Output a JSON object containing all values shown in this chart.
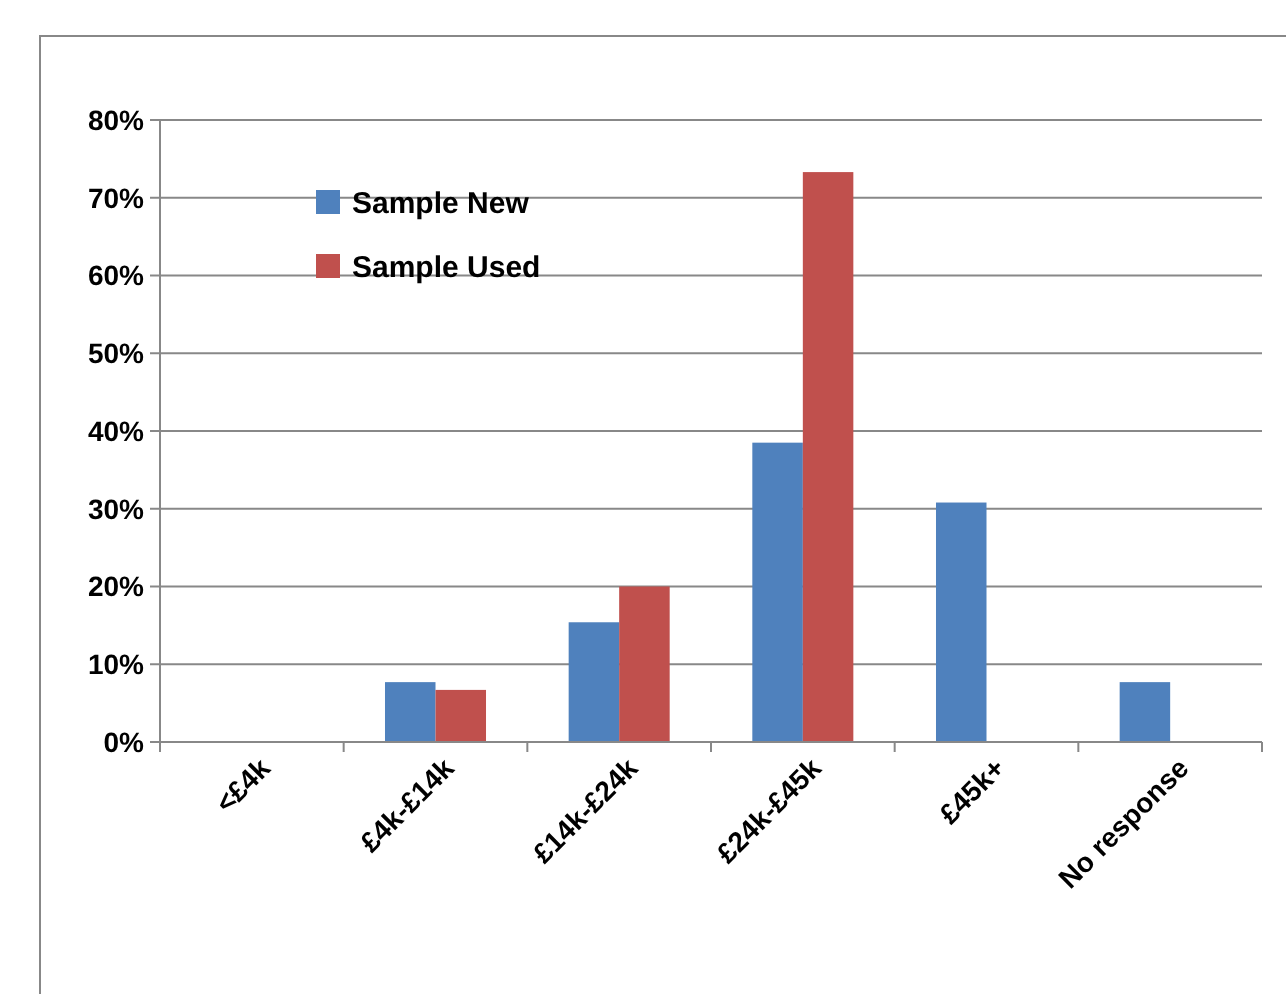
{
  "chart_data": {
    "type": "bar",
    "categories": [
      "<£4k",
      "£4k-£14k",
      "£14k-£24k",
      "£24k-£45k",
      "£45k+",
      "No response"
    ],
    "series": [
      {
        "name": "Sample New",
        "color": "#4f81bd",
        "values": [
          0,
          7.7,
          15.4,
          38.5,
          30.8,
          7.7
        ]
      },
      {
        "name": "Sample Used",
        "color": "#c0504d",
        "values": [
          0,
          6.7,
          20,
          73.3,
          0,
          0
        ]
      }
    ],
    "ylim": [
      0,
      80
    ],
    "yticks": [
      {
        "value": 0,
        "label": "0%"
      },
      {
        "value": 10,
        "label": "10%"
      },
      {
        "value": 20,
        "label": "20%"
      },
      {
        "value": 30,
        "label": "30%"
      },
      {
        "value": 40,
        "label": "40%"
      },
      {
        "value": 50,
        "label": "50%"
      },
      {
        "value": 60,
        "label": "60%"
      },
      {
        "value": 70,
        "label": "70%"
      },
      {
        "value": 80,
        "label": "80%"
      }
    ],
    "grid": "y",
    "legend": "top left"
  }
}
